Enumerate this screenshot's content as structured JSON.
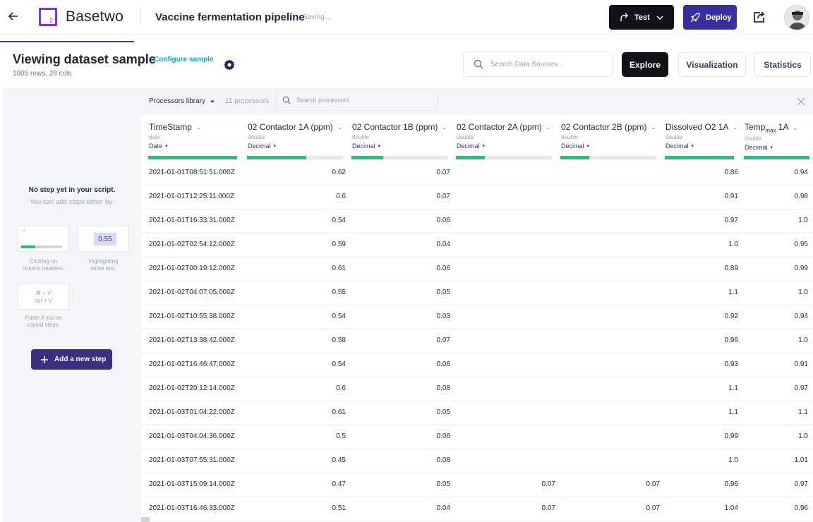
{
  "header": {
    "back_icon": "arrow-left-icon",
    "logo_subscript": "2",
    "brand": "Basetwo",
    "project_title": "Vaccine fermentation pipeline",
    "status": "Saving...",
    "test_label": "Test",
    "deploy_label": "Deploy",
    "accent_dark": "#111318",
    "accent_purple": "#3b2f9e"
  },
  "dataset": {
    "title": "Viewing dataset sample",
    "meta": "1005 rows, 28 cols",
    "configure_label": "Configure sample",
    "search_placeholder": "Search Data Sources...",
    "tabs": {
      "explore": "Explore",
      "visualization": "Visualization",
      "statistics": "Statistics"
    }
  },
  "steps_panel": {
    "empty_title": "No step yet in your script.",
    "empty_sub": "You can add steps either by:",
    "hint_value": "0.55",
    "hint1": [
      "Clicking on",
      "column headers."
    ],
    "hint2": [
      "Highlighting",
      "some text."
    ],
    "shortcut_mac": "⌘ + V",
    "shortcut_win": "ctrl + V",
    "hint3": [
      "Paste if you've",
      "copied steps."
    ],
    "add_step_label": "Add a new step"
  },
  "processors": {
    "library_label": "Processors library",
    "count": "11 processors",
    "search_placeholder": "Search processors"
  },
  "table": {
    "columns": [
      {
        "name": "TimeStamp",
        "type": "date",
        "format": "Date",
        "quality": 1.0
      },
      {
        "name": "02 Contactor 1A (ppm)",
        "type": "double",
        "format": "Decimal",
        "quality": 0.62
      },
      {
        "name": "02 Contactor 1B (ppm)",
        "type": "double",
        "format": "Decimal",
        "quality": 0.33
      },
      {
        "name": "02 Contactor 2A (ppm)",
        "type": "double",
        "format": "Decimal",
        "quality": 0.3
      },
      {
        "name": "02 Contactor 2B (ppm)",
        "type": "double",
        "format": "Decimal",
        "quality": 0.3
      },
      {
        "name": "Dissolved O2 1A",
        "type": "double",
        "format": "Decimal",
        "quality": 1.0
      },
      {
        "name_main": "Temp",
        "name_sub": "max",
        "name_tail": " 1A",
        "type": "double",
        "format": "Decimal",
        "quality": 1.0
      }
    ],
    "rows": [
      [
        "2021-01-01T08:51:51.000Z",
        "0.62",
        "0.07",
        "",
        "",
        "0.86",
        "0.94"
      ],
      [
        "2021-01-01T12:25:11.000Z",
        "0.6",
        "0.07",
        "",
        "",
        "0.91",
        "0.98"
      ],
      [
        "2021-01-01T16:33:31.000Z",
        "0.54",
        "0.06",
        "",
        "",
        "0.97",
        "1.0"
      ],
      [
        "2021-01-02T02:54:12.000Z",
        "0.59",
        "0.04",
        "",
        "",
        "1.0",
        "0.95"
      ],
      [
        "2021-01-02T00:19:12.000Z",
        "0.61",
        "0.06",
        "",
        "",
        "0.89",
        "0.99"
      ],
      [
        "2021-01-02T04:07:05.000Z",
        "0.55",
        "0.05",
        "",
        "",
        "1.1",
        "1.0"
      ],
      [
        "2021-01-02T10:55:38.000Z",
        "0.54",
        "0.03",
        "",
        "",
        "0.92",
        "0.94"
      ],
      [
        "2021-01-02T13:38:42.000Z",
        "0.58",
        "0.07",
        "",
        "",
        "0.96",
        "1.0"
      ],
      [
        "2021-01-02T16:46:47.000Z",
        "0.54",
        "0.06",
        "",
        "",
        "0.93",
        "0.91"
      ],
      [
        "2021-01-02T20:12:14.000Z",
        "0.6",
        "0.08",
        "",
        "",
        "1.1",
        "0.97"
      ],
      [
        "2021-01-03T01:04:22.000Z",
        "0.61",
        "0.05",
        "",
        "",
        "1.1",
        "1.1"
      ],
      [
        "2021-01-03T04:04:36.000Z",
        "0.5",
        "0.06",
        "",
        "",
        "0.99",
        "1.0"
      ],
      [
        "2021-01-03T07:55:31.000Z",
        "0.45",
        "0.08",
        "",
        "",
        "1.0",
        "1.01"
      ],
      [
        "2021-01-03T15:09:14.000Z",
        "0.47",
        "0.05",
        "0.07",
        "0.07",
        "0.96",
        "0.97"
      ],
      [
        "2021-01-03T16:46:33.000Z",
        "0.51",
        "0.04",
        "0.07",
        "0.07",
        "1.04",
        "0.96"
      ]
    ]
  }
}
